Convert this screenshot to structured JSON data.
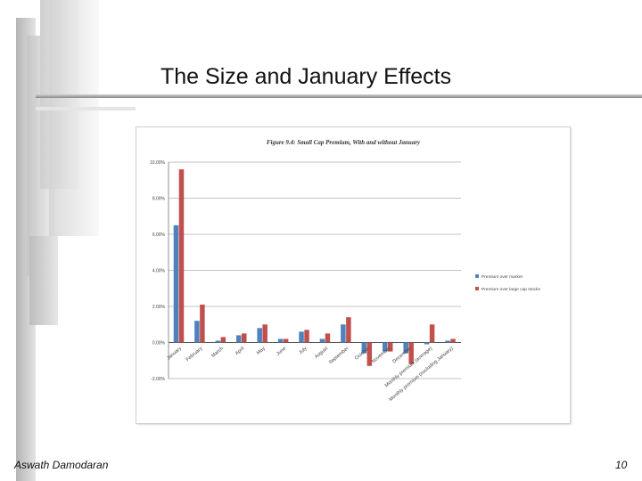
{
  "slide": {
    "title": "The Size and January Effects",
    "author": "Aswath Damodaran",
    "page_number": "10"
  },
  "colors": {
    "series_1": "#4f81bd",
    "series_2": "#c0504d",
    "grid": "#888888"
  },
  "chart_data": {
    "type": "bar",
    "title": "Figure 9.4: Small Cap Premium, With and without January",
    "xlabel": "",
    "ylabel": "",
    "categories": [
      "January",
      "February",
      "March",
      "April",
      "May",
      "June",
      "July",
      "August",
      "September",
      "October",
      "November",
      "December",
      "Monthly premium (average)",
      "Monthly premium (excluding January)"
    ],
    "series": [
      {
        "name": "Premium over market",
        "values": [
          6.5,
          1.2,
          0.1,
          0.4,
          0.8,
          0.2,
          0.6,
          0.2,
          1.0,
          -0.6,
          -0.5,
          -0.6,
          -0.1,
          0.1
        ]
      },
      {
        "name": "Premium over large cap stocks",
        "values": [
          9.6,
          2.1,
          0.3,
          0.5,
          1.0,
          0.2,
          0.7,
          0.5,
          1.4,
          -1.3,
          -0.5,
          -1.2,
          1.0,
          0.2
        ]
      }
    ],
    "yticks": [
      "10.00%",
      "8.00%",
      "6.00%",
      "4.00%",
      "2.00%",
      "0.00%",
      "-2.00%"
    ],
    "ylim": [
      -2,
      10
    ],
    "grid": true,
    "legend_position": "right"
  }
}
